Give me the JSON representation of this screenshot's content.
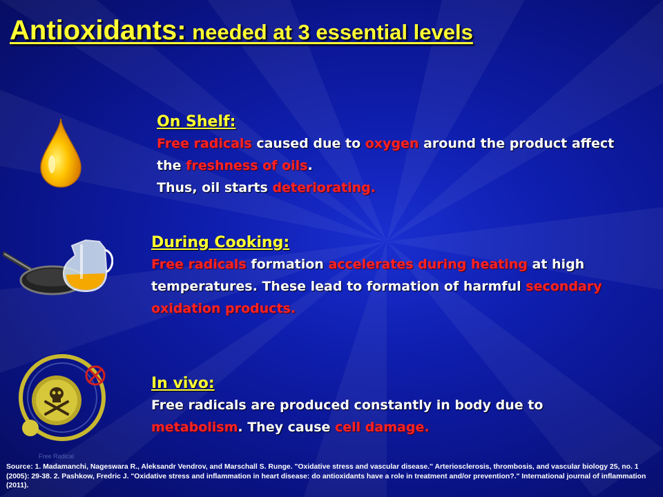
{
  "title": {
    "main": "Antioxidants:",
    "sub": " needed at 3 essential levels"
  },
  "sections": [
    {
      "heading": "On Shelf:",
      "icon": "oil-drop-icon",
      "body": {
        "p1": "Free radicals",
        "p2": " caused due to ",
        "p3": "oxygen",
        "p4": " around the product affect the ",
        "p5": "freshness of oils",
        "p6": ".",
        "p7": "Thus, oil starts ",
        "p8": "deteriorating."
      }
    },
    {
      "heading": "During Cooking:",
      "icon": "frying-pan-and-oil-jug-icon",
      "body": {
        "p1": "Free radicals",
        "p2": " formation ",
        "p3": "accelerates during heating",
        "p4": " at high temperatures. These lead to formation of harmful ",
        "p5": "secondary oxidation products."
      }
    },
    {
      "heading": "In vivo:",
      "icon": "free-radical-toxic-icon",
      "icon_label": "Free Radical",
      "body": {
        "p1": "Free radicals",
        "p2": " are produced constantly in body due to ",
        "p3": "metabolism",
        "p4": ". They cause ",
        "p5": "cell damage."
      }
    }
  ],
  "source": "Source: 1. Madamanchi, Nageswara R., Aleksandr Vendrov, and Marschall S. Runge. \"Oxidative stress and vascular disease.\" Arteriosclerosis, thrombosis, and vascular biology 25, no. 1 (2005): 29-38.  2. Pashkow, Fredric J. \"Oxidative stress and inflammation in heart disease: do antioxidants have a role in treatment and/or prevention?.\" International journal of inflammation (2011).",
  "colors": {
    "background": "#0f1fb0",
    "title": "#ffff33",
    "highlight": "#ff2222",
    "text": "#ffffff"
  }
}
